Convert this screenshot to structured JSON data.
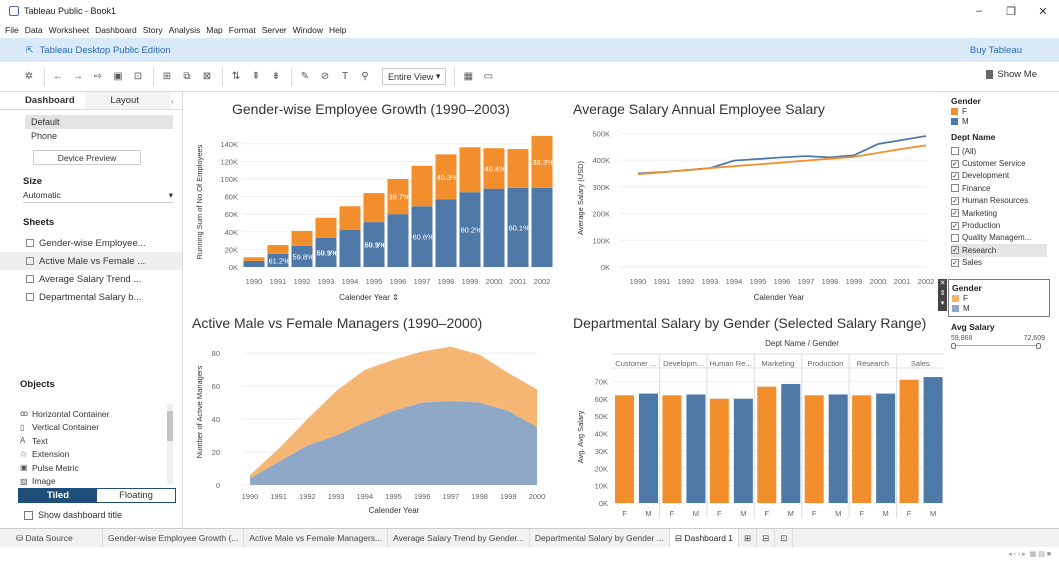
{
  "window": {
    "title": "Tableau Public - Book1",
    "controls": [
      "–",
      "❐",
      "✕"
    ]
  },
  "menu": [
    "File",
    "Data",
    "Worksheet",
    "Dashboard",
    "Story",
    "Analysis",
    "Map",
    "Format",
    "Server",
    "Window",
    "Help"
  ],
  "banner": {
    "edition": "Tableau Desktop Public Edition",
    "buy": "Buy Tableau"
  },
  "toolbar": {
    "fit": "Entire View",
    "show_me": "Show Me"
  },
  "left_pane": {
    "tabs": [
      "Dashboard",
      "Layout"
    ],
    "devices": [
      "Default",
      "Phone"
    ],
    "device_preview": "Device Preview",
    "size_heading": "Size",
    "size_value": "Automatic",
    "sheets_heading": "Sheets",
    "sheets": [
      "Gender-wise Employee...",
      "Active Male vs Female ...",
      "Average Salary Trend ...",
      "Departmental Salary b..."
    ],
    "objects_heading": "Objects",
    "objects": [
      {
        "icon": "ꝏ",
        "label": "Horizontal Container"
      },
      {
        "icon": "▯",
        "label": "Vertical Container"
      },
      {
        "icon": "A",
        "label": "Text"
      },
      {
        "icon": "♲",
        "label": "Extension"
      },
      {
        "icon": "▣",
        "label": "Pulse Metric"
      },
      {
        "icon": "▨",
        "label": "Image"
      }
    ],
    "tiled": "Tiled",
    "floating": "Floating",
    "show_title": "Show dashboard title"
  },
  "colors": {
    "female": "#f28e2b",
    "male": "#4e79a7",
    "area_female": "#f5b673",
    "area_male": "#8fa8c8"
  },
  "legends": {
    "gender_title": "Gender",
    "gender_items": [
      "F",
      "M"
    ],
    "dept_title": "Dept Name",
    "dept_items": [
      {
        "label": "(All)",
        "checked": false
      },
      {
        "label": "Customer Service",
        "checked": true
      },
      {
        "label": "Development",
        "checked": true
      },
      {
        "label": "Finance",
        "checked": false
      },
      {
        "label": "Human Resources",
        "checked": true
      },
      {
        "label": "Marketing",
        "checked": true
      },
      {
        "label": "Production",
        "checked": true
      },
      {
        "label": "Quality Managem...",
        "checked": false
      },
      {
        "label": "Research",
        "checked": true
      },
      {
        "label": "Sales",
        "checked": true
      }
    ],
    "gender2_title": "Gender",
    "avg_salary_title": "Avg Salary",
    "avg_salary_min": "59,868",
    "avg_salary_max": "72,609"
  },
  "bottom_tabs": [
    "Data Source",
    "Gender-wise Employee Growth (...",
    "Active Male vs Female Managers...",
    "Average Salary Trend by Gender...",
    "Departmental Salary by Gender ...",
    "Dashboard 1"
  ],
  "chart_data": [
    {
      "type": "bar",
      "stacked": true,
      "title": "Gender-wise Employee Growth (1990–2003)",
      "xlabel": "Calender Year",
      "ylabel": "Running Sum of No Of Employees",
      "categories": [
        "1990",
        "1991",
        "1992",
        "1993",
        "1994",
        "1995",
        "1996",
        "1997",
        "1998",
        "1999",
        "2000",
        "2001",
        "2002"
      ],
      "series": [
        {
          "name": "M",
          "values": [
            7000,
            15000,
            24000,
            33000,
            42000,
            51000,
            60000,
            69000,
            77000,
            85000,
            89000,
            90000,
            90000
          ]
        },
        {
          "name": "F",
          "values": [
            4000,
            10000,
            17000,
            23000,
            27000,
            33000,
            40000,
            46000,
            51000,
            51000,
            46000,
            44000,
            59000
          ]
        }
      ],
      "data_labels": [
        {
          "index": 1,
          "text": "61.2%"
        },
        {
          "index": 2,
          "text": "59.8%"
        },
        {
          "index": 3,
          "text": "59.9%"
        },
        {
          "index": 3,
          "text": "60.1%"
        },
        {
          "index": 5,
          "text": "59.9%"
        },
        {
          "index": 5,
          "text": "60.1%"
        },
        {
          "index": 6,
          "text": "39.7%"
        },
        {
          "index": 7,
          "text": "60.6%"
        },
        {
          "index": 8,
          "text": "40.3%"
        },
        {
          "index": 9,
          "text": "60.2%"
        },
        {
          "index": 10,
          "text": "40.4%"
        },
        {
          "index": 11,
          "text": "60.1%"
        },
        {
          "index": 12,
          "text": "38.3%"
        }
      ],
      "yticks": [
        "0K",
        "20K",
        "40K",
        "60K",
        "80K",
        "100K",
        "120K",
        "140K"
      ],
      "ylim": [
        0,
        150000
      ]
    },
    {
      "type": "line",
      "title": "Average Salary Annual Employee Salary",
      "xlabel": "Calender Year",
      "ylabel": "Average Salary (USD)",
      "x": [
        "1990",
        "1991",
        "1992",
        "1993",
        "1994",
        "1995",
        "1996",
        "1997",
        "1998",
        "1999",
        "2000",
        "2001",
        "2002"
      ],
      "series": [
        {
          "name": "M",
          "values": [
            350000,
            355000,
            362000,
            370000,
            398000,
            404000,
            410000,
            415000,
            410000,
            418000,
            460000,
            475000,
            490000
          ]
        },
        {
          "name": "F",
          "values": [
            347000,
            354000,
            362000,
            370000,
            377000,
            384000,
            391000,
            398000,
            405000,
            412000,
            427000,
            442000,
            455000
          ]
        }
      ],
      "yticks": [
        "0K",
        "100K",
        "200K",
        "300K",
        "400K",
        "500K"
      ],
      "ylim": [
        0,
        520000
      ]
    },
    {
      "type": "area",
      "stacked": true,
      "title": "Active Male vs Female Managers (1990–2000)",
      "xlabel": "Calender Year",
      "ylabel": "Number of Active Managers",
      "x": [
        "1990",
        "1991",
        "1992",
        "1993",
        "1994",
        "1995",
        "1996",
        "1997",
        "1998",
        "1999",
        "2000"
      ],
      "series": [
        {
          "name": "M",
          "values": [
            4,
            14,
            24,
            30,
            38,
            45,
            50,
            51,
            50,
            45,
            35
          ]
        },
        {
          "name": "F",
          "values": [
            2,
            8,
            16,
            27,
            32,
            31,
            31,
            33,
            29,
            23,
            23
          ]
        }
      ],
      "yticks": [
        "0",
        "20",
        "40",
        "60",
        "80"
      ],
      "ylim": [
        0,
        88
      ]
    },
    {
      "type": "bar",
      "title": "Departmental Salary by Gender (Selected Salary Range)",
      "header": "Dept Name / Gender",
      "ylabel": "Avg. Avg Salary",
      "departments": [
        "Customer ...",
        "Developm...",
        "Human Re...",
        "Marketing",
        "Production",
        "Research",
        "Sales"
      ],
      "genders": [
        "F",
        "M"
      ],
      "values": [
        [
          62000,
          63000
        ],
        [
          62000,
          62500
        ],
        [
          60000,
          60000
        ],
        [
          67000,
          68500
        ],
        [
          62000,
          62500
        ],
        [
          62000,
          63000
        ],
        [
          71000,
          72500
        ]
      ],
      "yticks": [
        "0K",
        "10K",
        "20K",
        "30K",
        "40K",
        "50K",
        "60K",
        "70K"
      ],
      "ylim": [
        0,
        76000
      ]
    }
  ]
}
